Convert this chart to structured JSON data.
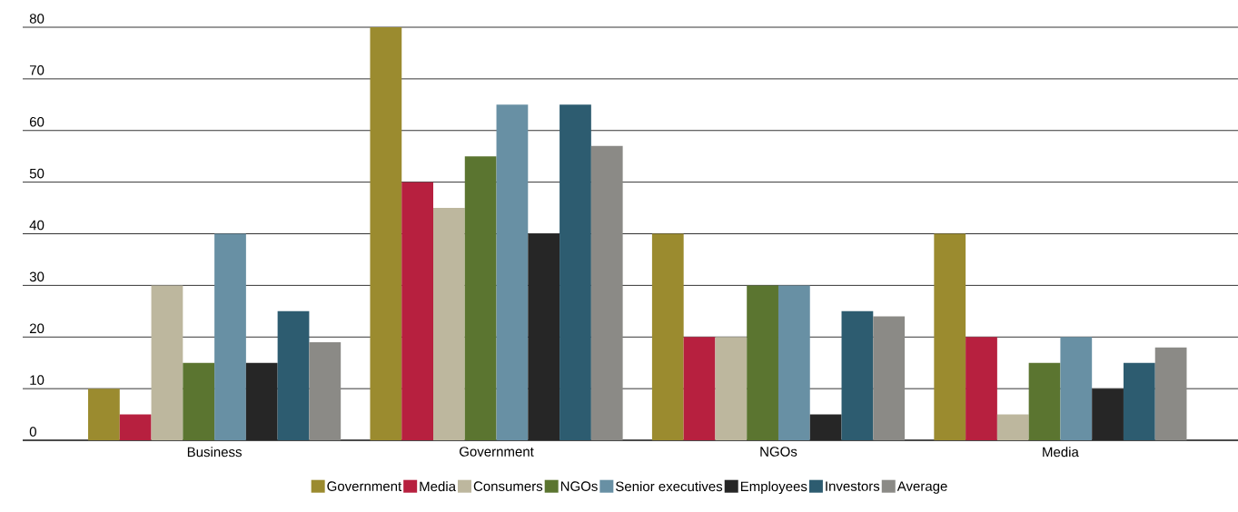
{
  "chart_data": {
    "type": "bar",
    "categories": [
      "Business",
      "Government",
      "NGOs",
      "Media"
    ],
    "series": [
      {
        "name": "Government",
        "color": "#9b8b2f",
        "values": [
          10,
          80,
          40,
          40
        ]
      },
      {
        "name": "Media",
        "color": "#b7203f",
        "values": [
          5,
          50,
          20,
          20
        ]
      },
      {
        "name": "Consumers",
        "color": "#bdb79e",
        "values": [
          30,
          45,
          20,
          5
        ]
      },
      {
        "name": "NGOs",
        "color": "#5b7530",
        "values": [
          15,
          55,
          30,
          15
        ]
      },
      {
        "name": "Senior executives",
        "color": "#6890a4",
        "values": [
          40,
          65,
          30,
          20
        ]
      },
      {
        "name": "Employees",
        "color": "#262626",
        "values": [
          15,
          40,
          5,
          10
        ]
      },
      {
        "name": "Investors",
        "color": "#2d5c70",
        "values": [
          25,
          65,
          25,
          15
        ]
      },
      {
        "name": "Average",
        "color": "#8b8a86",
        "values": [
          19,
          57,
          24,
          18
        ]
      }
    ],
    "ylim": [
      0,
      80
    ],
    "yticks": [
      0,
      10,
      20,
      30,
      40,
      50,
      60,
      70,
      80
    ],
    "grid": "y",
    "legend": "bottom"
  }
}
